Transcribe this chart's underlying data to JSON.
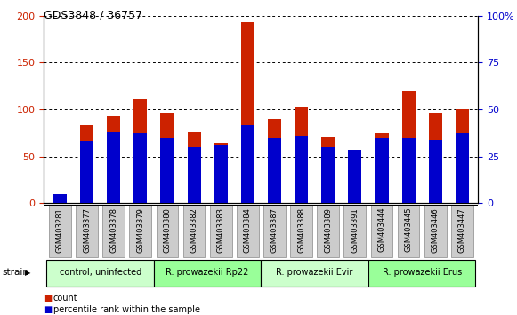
{
  "title": "GDS3848 / 36757",
  "samples": [
    "GSM403281",
    "GSM403377",
    "GSM403378",
    "GSM403379",
    "GSM403380",
    "GSM403382",
    "GSM403383",
    "GSM403384",
    "GSM403387",
    "GSM403388",
    "GSM403389",
    "GSM403391",
    "GSM403444",
    "GSM403445",
    "GSM403446",
    "GSM403447"
  ],
  "count_values": [
    3,
    84,
    93,
    111,
    96,
    76,
    64,
    193,
    90,
    103,
    71,
    52,
    75,
    120,
    96,
    101
  ],
  "percentile_values": [
    5,
    33,
    38,
    37,
    35,
    30,
    31,
    42,
    35,
    36,
    30,
    28,
    35,
    35,
    34,
    37
  ],
  "groups": [
    {
      "label": "control, uninfected",
      "start": 0,
      "end": 3,
      "color": "#ccffcc"
    },
    {
      "label": "R. prowazekii Rp22",
      "start": 4,
      "end": 7,
      "color": "#99ff99"
    },
    {
      "label": "R. prowazekii Evir",
      "start": 8,
      "end": 11,
      "color": "#ccffcc"
    },
    {
      "label": "R. prowazekii Erus",
      "start": 12,
      "end": 15,
      "color": "#99ff99"
    }
  ],
  "bar_color": "#cc2200",
  "percentile_color": "#0000cc",
  "ylim_left": [
    0,
    200
  ],
  "ylim_right": [
    0,
    100
  ],
  "yticks_left": [
    0,
    50,
    100,
    150,
    200
  ],
  "yticks_right": [
    0,
    25,
    50,
    75,
    100
  ],
  "ytick_labels_right": [
    "0",
    "25",
    "50",
    "75",
    "100%"
  ],
  "legend_count": "count",
  "legend_percentile": "percentile rank within the sample",
  "strain_label": "strain",
  "bg_color": "#ffffff",
  "sample_box_color": "#cccccc",
  "bar_width": 0.5
}
